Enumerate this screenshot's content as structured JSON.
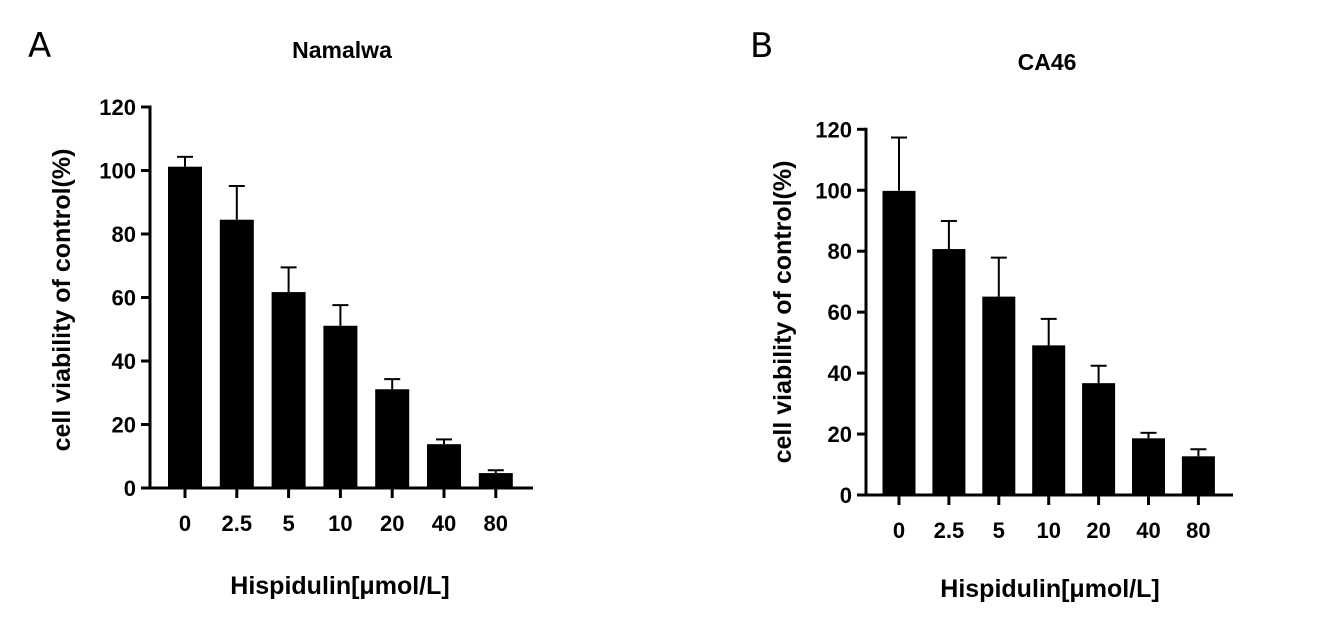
{
  "chart_data": [
    {
      "panel": "A",
      "type": "bar",
      "title": "Namalwa",
      "xlabel": "Hispidulin[μmol/L]",
      "ylabel": "cell viability of control(%)",
      "categories": [
        "0",
        "2.5",
        "5",
        "10",
        "20",
        "40",
        "80"
      ],
      "values": [
        101.2,
        84.5,
        61.7,
        51.1,
        31.1,
        13.8,
        4.7
      ],
      "error_upper": [
        104.3,
        95.1,
        69.5,
        57.6,
        34.3,
        15.3,
        5.6
      ],
      "ylim": [
        0,
        120
      ],
      "yticks": [
        0,
        20,
        40,
        60,
        80,
        100,
        120
      ],
      "grid": false,
      "bar_color": "#000000"
    },
    {
      "panel": "B",
      "type": "bar",
      "title": "CA46",
      "xlabel": "Hispidulin[μmol/L]",
      "ylabel": "cell viability of control(%)",
      "categories": [
        "0",
        "2.5",
        "5",
        "10",
        "20",
        "40",
        "80"
      ],
      "values": [
        99.8,
        80.7,
        65.1,
        49.1,
        36.7,
        18.6,
        12.7
      ],
      "error_upper": [
        117.3,
        89.9,
        77.9,
        57.8,
        42.4,
        20.4,
        15.0
      ],
      "ylim": [
        0,
        120
      ],
      "yticks": [
        0,
        20,
        40,
        60,
        80,
        100,
        120
      ],
      "grid": false,
      "bar_color": "#000000"
    }
  ]
}
